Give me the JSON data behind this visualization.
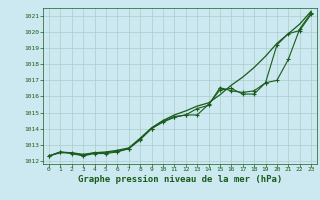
{
  "background_color": "#cce8f0",
  "grid_color": "#aacccc",
  "line_color": "#1a5c1a",
  "xlabel": "Graphe pression niveau de la mer (hPa)",
  "xlabel_fontsize": 6.5,
  "ylim": [
    1011.8,
    1021.5
  ],
  "xlim": [
    -0.5,
    23.5
  ],
  "yticks": [
    1012,
    1013,
    1014,
    1015,
    1016,
    1017,
    1018,
    1019,
    1020,
    1021
  ],
  "xticks": [
    0,
    1,
    2,
    3,
    4,
    5,
    6,
    7,
    8,
    9,
    10,
    11,
    12,
    13,
    14,
    15,
    16,
    17,
    18,
    19,
    20,
    21,
    22,
    23
  ],
  "series_smooth": [
    1012.3,
    1012.5,
    1012.5,
    1012.4,
    1012.5,
    1012.55,
    1012.65,
    1012.8,
    1013.4,
    1014.05,
    1014.5,
    1014.85,
    1015.1,
    1015.4,
    1015.6,
    1016.1,
    1016.7,
    1017.2,
    1017.8,
    1018.5,
    1019.3,
    1019.9,
    1020.5,
    1021.3
  ],
  "series_mid": [
    1012.3,
    1012.55,
    1012.5,
    1012.35,
    1012.5,
    1012.5,
    1012.6,
    1012.75,
    1013.3,
    1014.0,
    1014.45,
    1014.75,
    1014.85,
    1014.85,
    1015.5,
    1016.4,
    1016.5,
    1016.15,
    1016.15,
    1016.85,
    1017.0,
    1018.3,
    1020.2,
    1021.2
  ],
  "series_bottom": [
    1012.3,
    1012.55,
    1012.45,
    1012.3,
    1012.45,
    1012.45,
    1012.55,
    1012.75,
    1013.35,
    1014.0,
    1014.4,
    1014.7,
    1014.85,
    1015.25,
    1015.45,
    1016.55,
    1016.35,
    1016.25,
    1016.35,
    1016.85,
    1019.2,
    1019.9,
    1020.1,
    1021.1
  ]
}
